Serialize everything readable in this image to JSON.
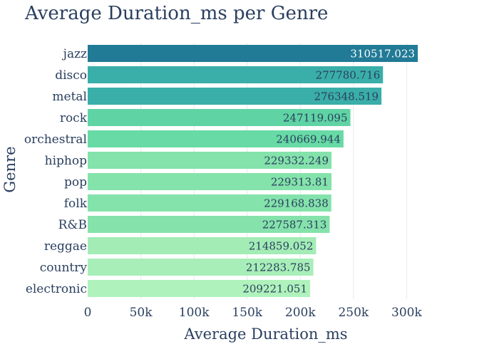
{
  "chart_data": {
    "type": "bar",
    "orientation": "horizontal",
    "title": "Average Duration_ms per Genre",
    "xlabel": "Average Duration_ms",
    "ylabel": "Genre",
    "categories": [
      "jazz",
      "disco",
      "metal",
      "rock",
      "orchestral",
      "hiphop",
      "pop",
      "folk",
      "R&B",
      "reggae",
      "country",
      "electronic"
    ],
    "values": [
      310517.023,
      277780.716,
      276348.519,
      247119.095,
      240669.944,
      229332.249,
      229313.81,
      229168.838,
      227587.313,
      214859.052,
      212283.785,
      209221.051
    ],
    "value_labels": [
      "310517.023",
      "277780.716",
      "276348.519",
      "247119.095",
      "240669.944",
      "229332.249",
      "229313.81",
      "229168.838",
      "227587.313",
      "214859.052",
      "212283.785",
      "209221.051"
    ],
    "xlim": [
      0,
      316500
    ],
    "xticks": [
      0,
      50000,
      100000,
      150000,
      200000,
      250000,
      300000
    ],
    "xtick_labels": [
      "0",
      "50k",
      "100k",
      "150k",
      "200k",
      "250k",
      "300k"
    ],
    "grid": true,
    "legend": "none",
    "colors": [
      "#217a96",
      "#3aaea9",
      "#3aaea9",
      "#5fd3a4",
      "#67daa5",
      "#84e2ab",
      "#84e2ab",
      "#84e2ab",
      "#85e2ab",
      "#a3ecb6",
      "#a8eeb8",
      "#b0f2bb"
    ],
    "label_colors": [
      "#ffffff",
      "#2a3f5f",
      "#2a3f5f",
      "#2a3f5f",
      "#2a3f5f",
      "#2a3f5f",
      "#2a3f5f",
      "#2a3f5f",
      "#2a3f5f",
      "#2a3f5f",
      "#2a3f5f",
      "#2a3f5f"
    ],
    "text_color": "#2a3f5f",
    "grid_color": "#e6e9ee"
  }
}
